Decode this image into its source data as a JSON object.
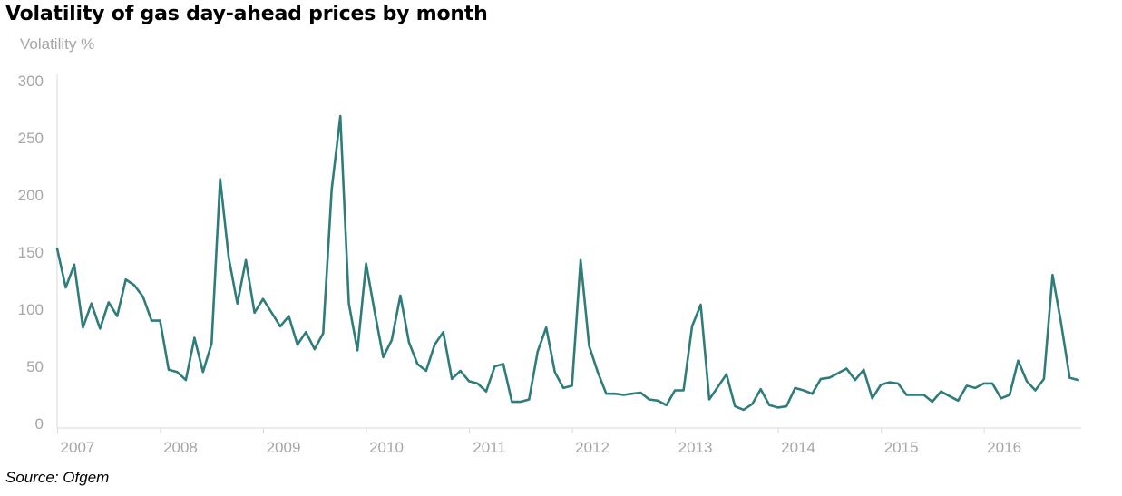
{
  "chart_data": {
    "type": "line",
    "title": "Volatility of gas day-ahead prices by month",
    "ylabel": "Volatility %",
    "xlabel": "",
    "source": "Source: Ofgem",
    "ylim": [
      0,
      300
    ],
    "yticks": [
      0,
      50,
      100,
      150,
      200,
      250,
      300
    ],
    "xticks": [
      "2007",
      "2008",
      "2009",
      "2010",
      "2011",
      "2012",
      "2013",
      "2014",
      "2015",
      "2016"
    ],
    "x_start": "2006-12",
    "grid": false,
    "line_color": "#2e7d7a",
    "series": [
      {
        "values": [
          153,
          119,
          139,
          84,
          105,
          83,
          106,
          94,
          126,
          121,
          111,
          90,
          90,
          47,
          45,
          38,
          75,
          45,
          70,
          214,
          145,
          105,
          143,
          97,
          109,
          97,
          85,
          94,
          69,
          80,
          65,
          79,
          205,
          269,
          105,
          64,
          140,
          98,
          58,
          73,
          112,
          71,
          52,
          46,
          69,
          80,
          39,
          46,
          37,
          35,
          28,
          50,
          52,
          19,
          19,
          21,
          63,
          84,
          45,
          31,
          33,
          143,
          68,
          45,
          26,
          26,
          25,
          26,
          27,
          21,
          20,
          16,
          29,
          29,
          85,
          104,
          21,
          32,
          43,
          15,
          12,
          17,
          30,
          16,
          14,
          15,
          31,
          29,
          26,
          39,
          40,
          44,
          48,
          38,
          47,
          22,
          34,
          36,
          35,
          25,
          25,
          25,
          19,
          28,
          24,
          20,
          33,
          31,
          35,
          35,
          22,
          25,
          55,
          37,
          29,
          39,
          130,
          88,
          40,
          38
        ]
      }
    ]
  }
}
